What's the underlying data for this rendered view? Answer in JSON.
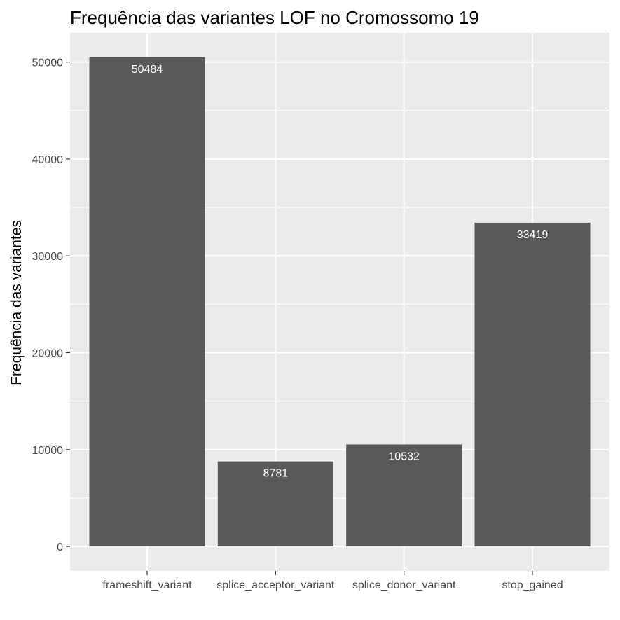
{
  "chart_data": {
    "type": "bar",
    "title": "Frequência das variantes LOF no Cromossomo 19",
    "xlabel": "",
    "ylabel": "Frequência das variantes",
    "categories": [
      "frameshift_variant",
      "splice_acceptor_variant",
      "splice_donor_variant",
      "stop_gained"
    ],
    "values": [
      50484,
      8781,
      10532,
      33419
    ],
    "data_labels": [
      "50484",
      "8781",
      "10532",
      "33419"
    ],
    "y_ticks": [
      0,
      10000,
      20000,
      30000,
      40000,
      50000
    ],
    "y_tick_labels": [
      "0",
      "10000",
      "20000",
      "30000",
      "40000",
      "50000"
    ],
    "ylim": [
      -2524,
      53008
    ],
    "grid": true,
    "legend": "none"
  },
  "colors": {
    "panel_background": "#ebebeb",
    "grid_major": "#ffffff",
    "bar_fill": "#595959",
    "data_label": "#ffffff",
    "tick_label": "#4d4d4d"
  }
}
